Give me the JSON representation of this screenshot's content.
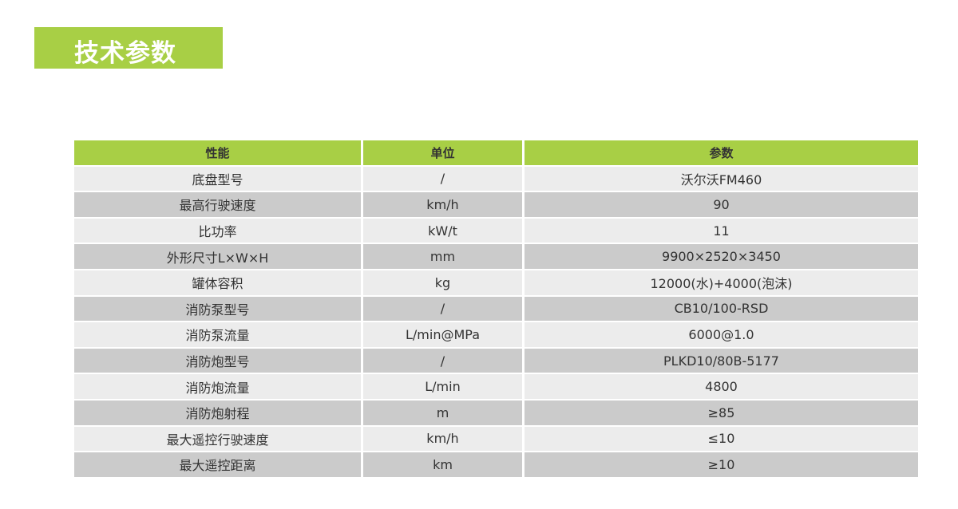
{
  "title": "技术参数",
  "colors": {
    "accent": "#a8cf45",
    "row_light": "#ececec",
    "row_dark": "#cbcbcb"
  },
  "table": {
    "headers": [
      "性能",
      "单位",
      "参数"
    ],
    "rows": [
      [
        "底盘型号",
        "/",
        "沃尔沃FM460"
      ],
      [
        "最高行驶速度",
        "km/h",
        "90"
      ],
      [
        "比功率",
        "kW/t",
        "11"
      ],
      [
        "外形尺寸L×W×H",
        "mm",
        "9900×2520×3450"
      ],
      [
        "罐体容积",
        "kg",
        "12000(水)+4000(泡沫)"
      ],
      [
        "消防泵型号",
        "/",
        "CB10/100-RSD"
      ],
      [
        "消防泵流量",
        "L/min@MPa",
        "6000@1.0"
      ],
      [
        "消防炮型号",
        "/",
        "PLKD10/80B-5177"
      ],
      [
        "消防炮流量",
        "L/min",
        "4800"
      ],
      [
        "消防炮射程",
        "m",
        "≥85"
      ],
      [
        "最大遥控行驶速度",
        "km/h",
        "≤10"
      ],
      [
        "最大遥控距离",
        "km",
        "≥10"
      ]
    ]
  }
}
